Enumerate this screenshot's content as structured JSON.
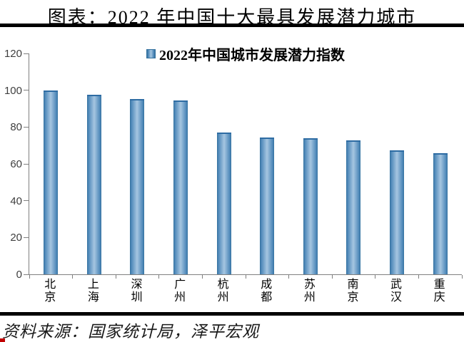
{
  "header": {
    "title": "图表：2022 年中国十大最具发展潜力城市"
  },
  "legend": {
    "label": "2022年中国城市发展潜力指数"
  },
  "footer": {
    "source": "资料来源：国家统计局，泽平宏观"
  },
  "chart_data": {
    "type": "bar",
    "title": "2022年中国城市发展潜力指数",
    "categories": [
      "北京",
      "上海",
      "深圳",
      "广州",
      "杭州",
      "成都",
      "苏州",
      "南京",
      "武汉",
      "重庆"
    ],
    "values": [
      100,
      97.6,
      95.1,
      94.6,
      77.1,
      74.5,
      74.1,
      72.9,
      67.3,
      65.9
    ],
    "xlabel": "",
    "ylabel": "",
    "ylim": [
      0,
      120
    ],
    "yticks": [
      0,
      20,
      40,
      60,
      80,
      100,
      120
    ],
    "grid": false,
    "legend_position": "top-center",
    "bar_edge_color": "#34719E",
    "bar_center_color": "#A6C6E1"
  },
  "colors": {
    "accent_red": "#C00000",
    "axis_gray": "#7F7F7F",
    "rule_black": "#000000"
  }
}
